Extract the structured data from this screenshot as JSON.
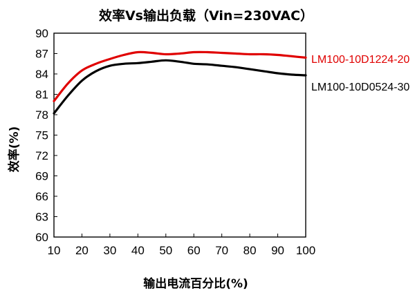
{
  "chart_data": {
    "type": "line",
    "title": "效率Vs输出负载（Vin=230VAC）",
    "xlabel": "输出电流百分比(%)",
    "ylabel": "效率(%)",
    "xlim": [
      10,
      100
    ],
    "ylim": [
      60,
      90
    ],
    "xticks": [
      10,
      20,
      30,
      40,
      50,
      60,
      70,
      80,
      90,
      100
    ],
    "yticks": [
      60,
      63,
      66,
      69,
      72,
      75,
      78,
      81,
      84,
      87,
      90
    ],
    "grid": false,
    "legend": "right, beside line ends",
    "series": [
      {
        "name": "LM100-10D1224-20",
        "color": "#e00000",
        "x": [
          10,
          15,
          20,
          25,
          30,
          35,
          40,
          45,
          50,
          55,
          60,
          65,
          70,
          75,
          80,
          85,
          90,
          95,
          100
        ],
        "y": [
          80.0,
          82.6,
          84.5,
          85.5,
          86.2,
          86.8,
          87.2,
          87.1,
          86.9,
          87.0,
          87.2,
          87.2,
          87.1,
          87.0,
          86.9,
          86.9,
          86.8,
          86.6,
          86.4
        ]
      },
      {
        "name": "LM100-10D0524-30",
        "color": "#000000",
        "x": [
          10,
          15,
          20,
          25,
          30,
          35,
          40,
          45,
          50,
          55,
          60,
          65,
          70,
          75,
          80,
          85,
          90,
          95,
          100
        ],
        "y": [
          78.2,
          80.8,
          83.0,
          84.4,
          85.2,
          85.5,
          85.6,
          85.8,
          86.0,
          85.8,
          85.5,
          85.4,
          85.2,
          85.0,
          84.7,
          84.4,
          84.1,
          83.9,
          83.8
        ]
      }
    ]
  }
}
